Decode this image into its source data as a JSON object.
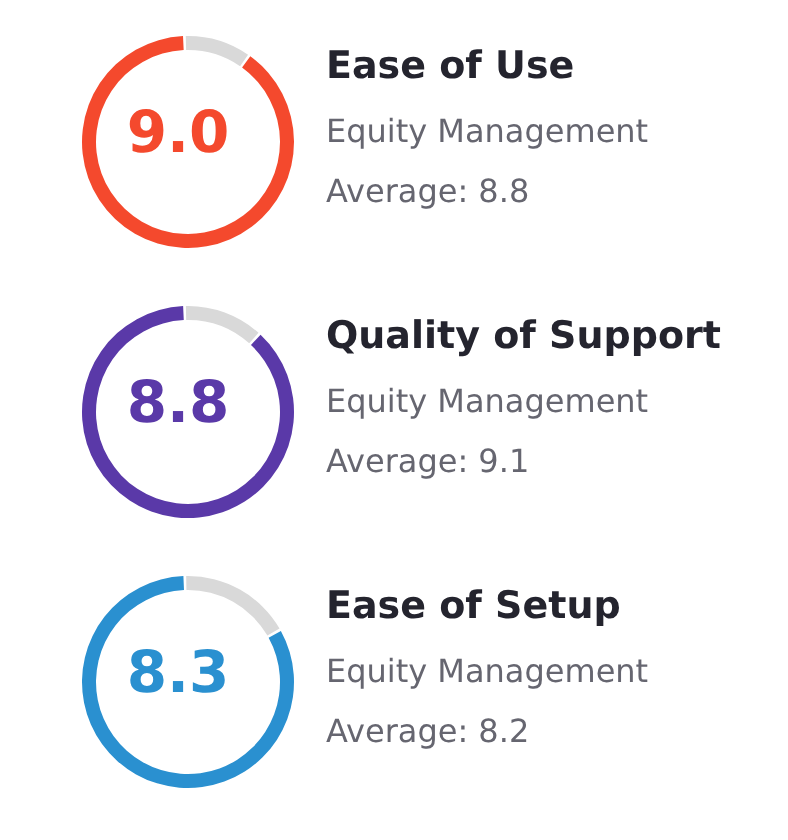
{
  "chart_data": [
    {
      "type": "donut",
      "title": "Ease of Use",
      "subtitle": "Equity Management",
      "annotations": [
        "Average: 8.8"
      ],
      "categories": [
        null,
        null
      ],
      "values": [
        9.0,
        1.0
      ],
      "value_labels": [
        "9.0",
        null
      ],
      "colors": [
        "#f4492d",
        "#d9d9d9"
      ]
    },
    {
      "type": "donut",
      "title": "Quality of Support",
      "subtitle": "Equity Management",
      "annotations": [
        "Average: 9.1"
      ],
      "categories": [
        null,
        null
      ],
      "values": [
        8.8,
        1.2
      ],
      "value_labels": [
        "8.8",
        null
      ],
      "colors": [
        "#5a39a8",
        "#d9d9d9"
      ]
    },
    {
      "type": "donut",
      "title": "Ease of Setup",
      "subtitle": "Equity Management",
      "annotations": [
        "Average: 8.2"
      ],
      "categories": [
        null,
        null
      ],
      "values": [
        8.3,
        1.7
      ],
      "value_labels": [
        "8.3",
        null
      ],
      "colors": [
        "#2a90d0",
        "#d9d9d9"
      ]
    }
  ]
}
